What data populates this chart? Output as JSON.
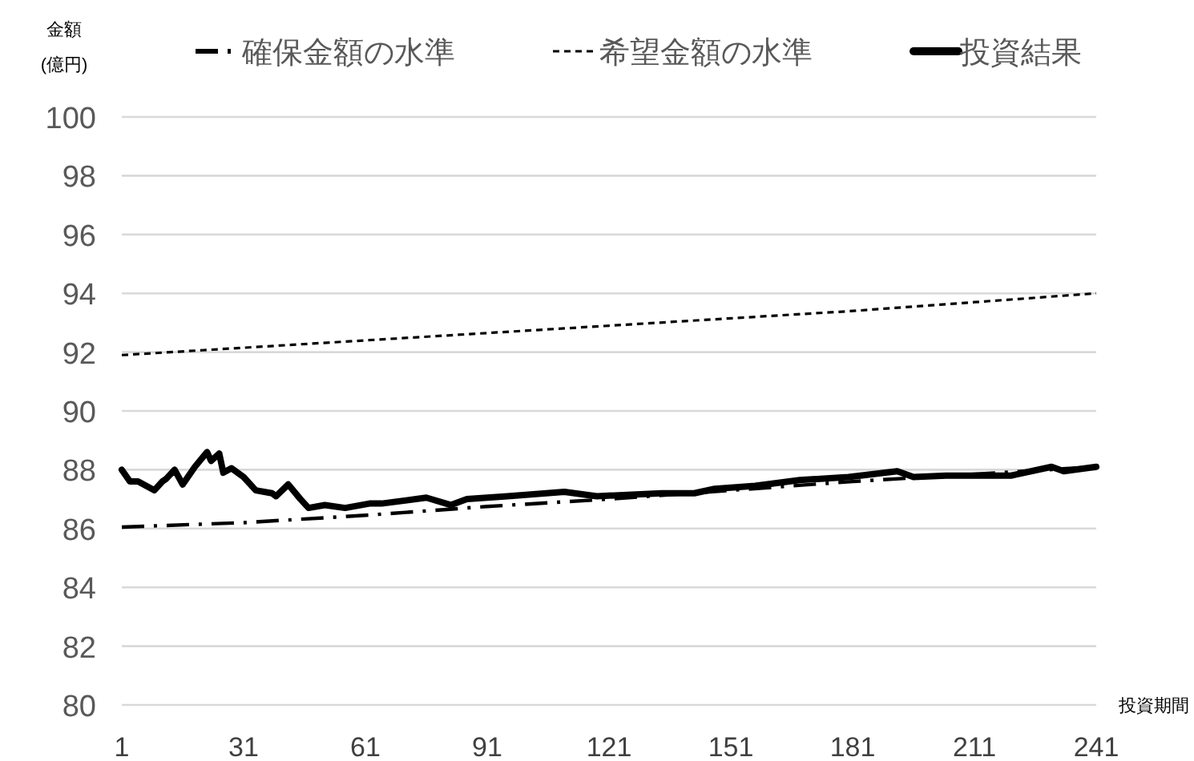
{
  "chart_data": {
    "type": "line",
    "ylabel": "金額\n(億円)",
    "xlabel": "投資期間",
    "xlim": [
      1,
      241
    ],
    "xticks": [
      1,
      31,
      61,
      91,
      121,
      151,
      181,
      211,
      241
    ],
    "ylim": [
      80,
      100
    ],
    "yticks": [
      80,
      82,
      84,
      86,
      88,
      90,
      92,
      94,
      96,
      98,
      100
    ],
    "grid": "y",
    "legend": "top",
    "marker": "none",
    "series": [
      {
        "name": "確保金額の水準",
        "color": "#000000",
        "line_style": "dashdot",
        "x": [
          1,
          31,
          61,
          91,
          121,
          151,
          181,
          211,
          241
        ],
        "values": [
          86.05,
          86.2,
          86.45,
          86.75,
          87.0,
          87.3,
          87.6,
          87.85,
          88.1
        ]
      },
      {
        "name": "希望金額の水準",
        "color": "#000000",
        "line_style": "dashed",
        "x": [
          1,
          31,
          61,
          91,
          121,
          151,
          181,
          211,
          241
        ],
        "values": [
          91.9,
          92.15,
          92.4,
          92.65,
          92.9,
          93.15,
          93.4,
          93.7,
          94.0
        ]
      },
      {
        "name": "投資結果",
        "color": "#000000",
        "line_style": "solid",
        "x": [
          1,
          3,
          5,
          9,
          11,
          12,
          14,
          16,
          19,
          22,
          23,
          25,
          26,
          28,
          31,
          34,
          38,
          39,
          42,
          45,
          47,
          51,
          56,
          62,
          65,
          76,
          82,
          86,
          96,
          110,
          118,
          134,
          142,
          147,
          157,
          168,
          180,
          192,
          196,
          204,
          220,
          230,
          233,
          241
        ],
        "values": [
          88.0,
          87.6,
          87.6,
          87.3,
          87.6,
          87.7,
          88.0,
          87.5,
          88.1,
          88.6,
          88.3,
          88.55,
          87.9,
          88.05,
          87.75,
          87.3,
          87.2,
          87.1,
          87.5,
          87.0,
          86.7,
          86.8,
          86.7,
          86.85,
          86.85,
          87.05,
          86.8,
          87.0,
          87.1,
          87.25,
          87.1,
          87.2,
          87.2,
          87.35,
          87.45,
          87.65,
          87.75,
          87.95,
          87.75,
          87.8,
          87.8,
          88.1,
          87.95,
          88.1
        ]
      }
    ]
  }
}
